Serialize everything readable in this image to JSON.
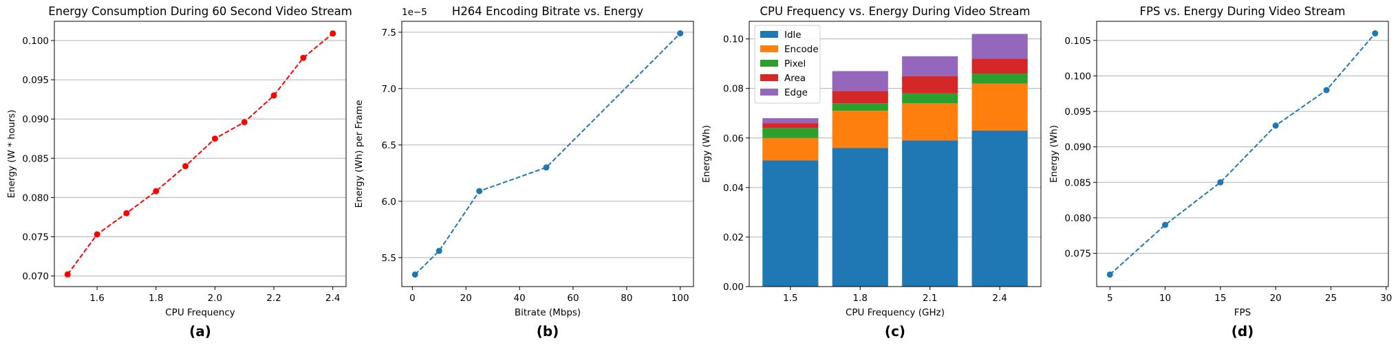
{
  "chart_data": [
    {
      "type": "line",
      "panel_label": "(a)",
      "title": "Energy Consumption During 60 Second Video Stream",
      "xlabel": "CPU Frequency",
      "ylabel": "Energy (W * hours)",
      "x": [
        1.5,
        1.6,
        1.7,
        1.8,
        1.9,
        2.0,
        2.1,
        2.2,
        2.3,
        2.4
      ],
      "series": [
        {
          "values": [
            0.0702,
            0.0753,
            0.078,
            0.0808,
            0.084,
            0.0875,
            0.0896,
            0.093,
            0.0978,
            0.1009
          ],
          "color": "#ff0000",
          "style": "dashed",
          "marker": "circle"
        }
      ],
      "xticks": [
        1.6,
        1.8,
        2.0,
        2.2,
        2.4
      ],
      "xtick_labels": [
        "1.6",
        "1.8",
        "2.0",
        "2.2",
        "2.4"
      ],
      "yticks": [
        0.07,
        0.075,
        0.08,
        0.085,
        0.09,
        0.095,
        0.1
      ],
      "ytick_labels": [
        "0.070",
        "0.075",
        "0.080",
        "0.085",
        "0.090",
        "0.095",
        "0.100"
      ],
      "xlim": [
        1.455,
        2.445
      ],
      "ylim": [
        0.06865,
        0.10245
      ],
      "grid": "horizontal"
    },
    {
      "type": "line",
      "panel_label": "(b)",
      "title": "H264 Encoding Bitrate vs. Energy",
      "xlabel": "Bitrate (Mbps)",
      "ylabel": "Energy (Wh) per Frame",
      "y_offset_text": "1e−5",
      "x": [
        1,
        10,
        25,
        50,
        100
      ],
      "series": [
        {
          "values": [
            5.35,
            5.56,
            6.09,
            6.3,
            7.49
          ],
          "color": "#1f77b4",
          "style": "dashed",
          "marker": "circle"
        }
      ],
      "xticks": [
        0,
        20,
        40,
        60,
        80,
        100
      ],
      "xtick_labels": [
        "0",
        "20",
        "40",
        "60",
        "80",
        "100"
      ],
      "yticks": [
        5.5,
        6.0,
        6.5,
        7.0,
        7.5
      ],
      "ytick_labels": [
        "5.5",
        "6.0",
        "6.5",
        "7.0",
        "7.5"
      ],
      "xlim": [
        -3.95,
        104.95
      ],
      "ylim": [
        5.243,
        7.597
      ],
      "grid": "horizontal"
    },
    {
      "type": "bar",
      "stacked": true,
      "panel_label": "(c)",
      "title": "CPU Frequency vs. Energy During Video Stream",
      "xlabel": "CPU Frequency (GHz)",
      "ylabel": "Energy (Wh)",
      "categories": [
        "1.5",
        "1.8",
        "2.1",
        "2.4"
      ],
      "series": [
        {
          "name": "Idle",
          "values": [
            0.051,
            0.056,
            0.059,
            0.063
          ],
          "color": "#1f77b4"
        },
        {
          "name": "Encode",
          "values": [
            0.009,
            0.015,
            0.015,
            0.019
          ],
          "color": "#ff7f0e"
        },
        {
          "name": "Pixel",
          "values": [
            0.004,
            0.003,
            0.004,
            0.004
          ],
          "color": "#2ca02c"
        },
        {
          "name": "Area",
          "values": [
            0.002,
            0.005,
            0.007,
            0.006
          ],
          "color": "#d62728"
        },
        {
          "name": "Edge",
          "values": [
            0.002,
            0.008,
            0.008,
            0.01
          ],
          "color": "#9467bd"
        }
      ],
      "yticks": [
        0.0,
        0.02,
        0.04,
        0.06,
        0.08,
        0.1
      ],
      "ytick_labels": [
        "0.00",
        "0.02",
        "0.04",
        "0.06",
        "0.08",
        "0.10"
      ],
      "ylim": [
        0,
        0.1071
      ],
      "grid": "horizontal",
      "legend": "top-left"
    },
    {
      "type": "line",
      "panel_label": "(d)",
      "title": "FPS vs. Energy During Video Stream",
      "xlabel": "FPS",
      "ylabel": "Energy (Wh)",
      "x": [
        5,
        10,
        15,
        20,
        24.6,
        29
      ],
      "series": [
        {
          "values": [
            0.072,
            0.079,
            0.085,
            0.093,
            0.098,
            0.106
          ],
          "color": "#1f77b4",
          "style": "dashed",
          "marker": "circle"
        }
      ],
      "xticks": [
        5,
        10,
        15,
        20,
        25,
        30
      ],
      "xtick_labels": [
        "5",
        "10",
        "15",
        "20",
        "25",
        "30"
      ],
      "yticks": [
        0.075,
        0.08,
        0.085,
        0.09,
        0.095,
        0.1,
        0.105
      ],
      "ytick_labels": [
        "0.075",
        "0.080",
        "0.085",
        "0.090",
        "0.095",
        "0.100",
        "0.105"
      ],
      "xlim": [
        3.8,
        30.2
      ],
      "ylim": [
        0.0703,
        0.1077
      ],
      "grid": "horizontal"
    }
  ]
}
